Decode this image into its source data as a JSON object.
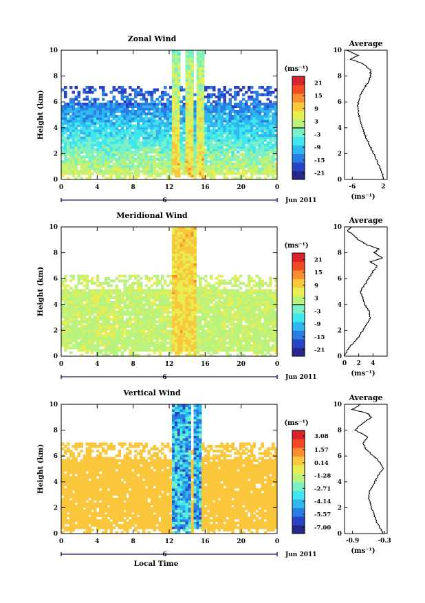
{
  "chart_data": [
    {
      "type": "heatmap",
      "title": "Zonal Wind",
      "ylabel": "Height (km)",
      "xlabel": "",
      "x_ticks": [
        "0",
        "4",
        "8",
        "12",
        "16",
        "20",
        "0"
      ],
      "y_ticks": [
        "0",
        "2",
        "4",
        "6",
        "8",
        "10"
      ],
      "xlim": [
        0,
        24
      ],
      "ylim": [
        0,
        10
      ],
      "date_marker": "6",
      "date_label": "Jun 2011",
      "colorbar": {
        "unit": "(ms⁻¹)",
        "ticks": [
          "21",
          "15",
          "9",
          "3",
          "-3",
          "-9",
          "-15",
          "-21"
        ],
        "range": [
          -24,
          24
        ],
        "zero_line_value": 0,
        "palette": [
          "#27278a",
          "#2a44c8",
          "#2b7de6",
          "#2fb8f0",
          "#3fe6ee",
          "#79f0c6",
          "#b9f27c",
          "#e8ee52",
          "#f9c63c",
          "#f98e2e",
          "#f24a24",
          "#d8242a"
        ]
      },
      "field": {
        "base": 5,
        "lapse": -3.2,
        "noise": 3.5,
        "burst_times": [
          12.6,
          14.2,
          15.4
        ],
        "burst_value": 14,
        "top_km_clear_before_12": 7.2
      },
      "average_panel": {
        "title": "Average",
        "x_ticks": [
          "-6",
          "2"
        ],
        "xlim": [
          -8,
          3
        ],
        "ylim": [
          0,
          10
        ],
        "unit": "(ms⁻¹)",
        "profile": [
          {
            "h": 0.0,
            "v": 2.0
          },
          {
            "h": 0.5,
            "v": 1.7
          },
          {
            "h": 1.0,
            "v": 1.0
          },
          {
            "h": 1.5,
            "v": 0.3
          },
          {
            "h": 2.0,
            "v": -0.5
          },
          {
            "h": 2.5,
            "v": -1.3
          },
          {
            "h": 3.0,
            "v": -2.1
          },
          {
            "h": 3.5,
            "v": -2.8
          },
          {
            "h": 4.0,
            "v": -3.4
          },
          {
            "h": 4.5,
            "v": -3.8
          },
          {
            "h": 5.0,
            "v": -4.3
          },
          {
            "h": 5.5,
            "v": -4.6
          },
          {
            "h": 6.0,
            "v": -4.5
          },
          {
            "h": 6.5,
            "v": -3.9
          },
          {
            "h": 7.0,
            "v": -3.0
          },
          {
            "h": 7.5,
            "v": -2.0
          },
          {
            "h": 8.0,
            "v": -1.2
          },
          {
            "h": 8.5,
            "v": -1.4
          },
          {
            "h": 9.0,
            "v": -3.5
          },
          {
            "h": 9.3,
            "v": -6.5
          },
          {
            "h": 9.6,
            "v": -4.5
          },
          {
            "h": 10.0,
            "v": -7.5
          }
        ]
      }
    },
    {
      "type": "heatmap",
      "title": "Meridional Wind",
      "ylabel": "Height (km)",
      "xlabel": "",
      "x_ticks": [
        "0",
        "4",
        "8",
        "12",
        "16",
        "20",
        "0"
      ],
      "y_ticks": [
        "0",
        "2",
        "4",
        "6",
        "8",
        "10"
      ],
      "xlim": [
        0,
        24
      ],
      "ylim": [
        0,
        10
      ],
      "date_marker": "6",
      "date_label": "Jun 2011",
      "colorbar": {
        "unit": "(ms⁻¹)",
        "ticks": [
          "21",
          "15",
          "9",
          "3",
          "-3",
          "-9",
          "-15",
          "-21"
        ],
        "range": [
          -24,
          24
        ],
        "zero_line_value": 0,
        "palette": [
          "#27278a",
          "#2a44c8",
          "#2b7de6",
          "#2fb8f0",
          "#3fe6ee",
          "#79f0c6",
          "#b9f27c",
          "#e8ee52",
          "#f9c63c",
          "#f98e2e",
          "#f24a24",
          "#d8242a"
        ]
      },
      "field": {
        "base": 2.5,
        "lapse": 0.15,
        "noise": 2.5,
        "burst_times": [
          12.8,
          13.6,
          14.6
        ],
        "burst_value": 12,
        "top_km_clear_before_12": 6.3
      },
      "average_panel": {
        "title": "Average",
        "x_ticks": [
          "0",
          "2",
          "4"
        ],
        "xlim": [
          0,
          6
        ],
        "ylim": [
          0,
          10
        ],
        "unit": "(ms⁻¹)",
        "profile": [
          {
            "h": 0.0,
            "v": 0.0
          },
          {
            "h": 0.5,
            "v": 0.4
          },
          {
            "h": 1.0,
            "v": 1.2
          },
          {
            "h": 1.5,
            "v": 2.0
          },
          {
            "h": 2.0,
            "v": 2.6
          },
          {
            "h": 2.5,
            "v": 3.2
          },
          {
            "h": 3.0,
            "v": 3.6
          },
          {
            "h": 3.5,
            "v": 3.4
          },
          {
            "h": 4.0,
            "v": 2.8
          },
          {
            "h": 4.5,
            "v": 2.6
          },
          {
            "h": 5.0,
            "v": 2.2
          },
          {
            "h": 5.5,
            "v": 2.8
          },
          {
            "h": 6.0,
            "v": 3.4
          },
          {
            "h": 6.5,
            "v": 3.9
          },
          {
            "h": 7.0,
            "v": 4.6
          },
          {
            "h": 7.3,
            "v": 3.6
          },
          {
            "h": 7.6,
            "v": 5.4
          },
          {
            "h": 8.0,
            "v": 4.2
          },
          {
            "h": 8.3,
            "v": 4.8
          },
          {
            "h": 8.6,
            "v": 3.2
          },
          {
            "h": 9.0,
            "v": 2.0
          },
          {
            "h": 9.4,
            "v": 1.2
          },
          {
            "h": 9.7,
            "v": 0.4
          },
          {
            "h": 10.0,
            "v": 1.0
          }
        ]
      }
    },
    {
      "type": "heatmap",
      "title": "Vertical Wind",
      "ylabel": "Height (km)",
      "xlabel": "Local Time",
      "x_ticks": [
        "0",
        "4",
        "8",
        "12",
        "16",
        "20",
        "0"
      ],
      "y_ticks": [
        "0",
        "2",
        "4",
        "6",
        "8",
        "10"
      ],
      "xlim": [
        0,
        24
      ],
      "ylim": [
        0,
        10
      ],
      "date_marker": "6",
      "date_label": "Jun 2011",
      "colorbar": {
        "unit": "(ms⁻¹)",
        "ticks": [
          "3.08",
          "1.57",
          "0.14",
          "-1.28",
          "-2.71",
          "-4.14",
          "-5.57",
          "-7.00"
        ],
        "range": [
          -7.7,
          3.7
        ],
        "zero_line_value": null,
        "palette": [
          "#27278a",
          "#2a44c8",
          "#2b7de6",
          "#2fb8f0",
          "#3fe6ee",
          "#79f0c6",
          "#b9f27c",
          "#e8ee52",
          "#f9c63c",
          "#f98e2e",
          "#f24a24",
          "#d8242a"
        ]
      },
      "field": {
        "base": 0.35,
        "lapse": 0.0,
        "noise": 0.35,
        "burst_times": [
          12.9,
          13.8,
          15.2
        ],
        "burst_value": -6.2,
        "top_km_clear_before_12": 7.0
      },
      "average_panel": {
        "title": "Average",
        "x_ticks": [
          "-0.9",
          "-0.3"
        ],
        "xlim": [
          -1.05,
          -0.25
        ],
        "ylim": [
          0,
          10
        ],
        "unit": "(ms⁻¹)",
        "profile": [
          {
            "h": 0.0,
            "v": -0.32
          },
          {
            "h": 0.5,
            "v": -0.4
          },
          {
            "h": 1.0,
            "v": -0.45
          },
          {
            "h": 1.5,
            "v": -0.5
          },
          {
            "h": 2.0,
            "v": -0.55
          },
          {
            "h": 2.5,
            "v": -0.58
          },
          {
            "h": 3.0,
            "v": -0.6
          },
          {
            "h": 3.5,
            "v": -0.55
          },
          {
            "h": 4.0,
            "v": -0.48
          },
          {
            "h": 4.5,
            "v": -0.42
          },
          {
            "h": 5.0,
            "v": -0.33
          },
          {
            "h": 5.5,
            "v": -0.38
          },
          {
            "h": 6.0,
            "v": -0.5
          },
          {
            "h": 6.5,
            "v": -0.65
          },
          {
            "h": 7.0,
            "v": -0.7
          },
          {
            "h": 7.5,
            "v": -0.62
          },
          {
            "h": 8.0,
            "v": -0.85
          },
          {
            "h": 8.5,
            "v": -0.72
          },
          {
            "h": 9.0,
            "v": -0.55
          },
          {
            "h": 9.3,
            "v": -0.62
          },
          {
            "h": 9.6,
            "v": -0.9
          },
          {
            "h": 10.0,
            "v": -0.75
          }
        ]
      }
    }
  ]
}
